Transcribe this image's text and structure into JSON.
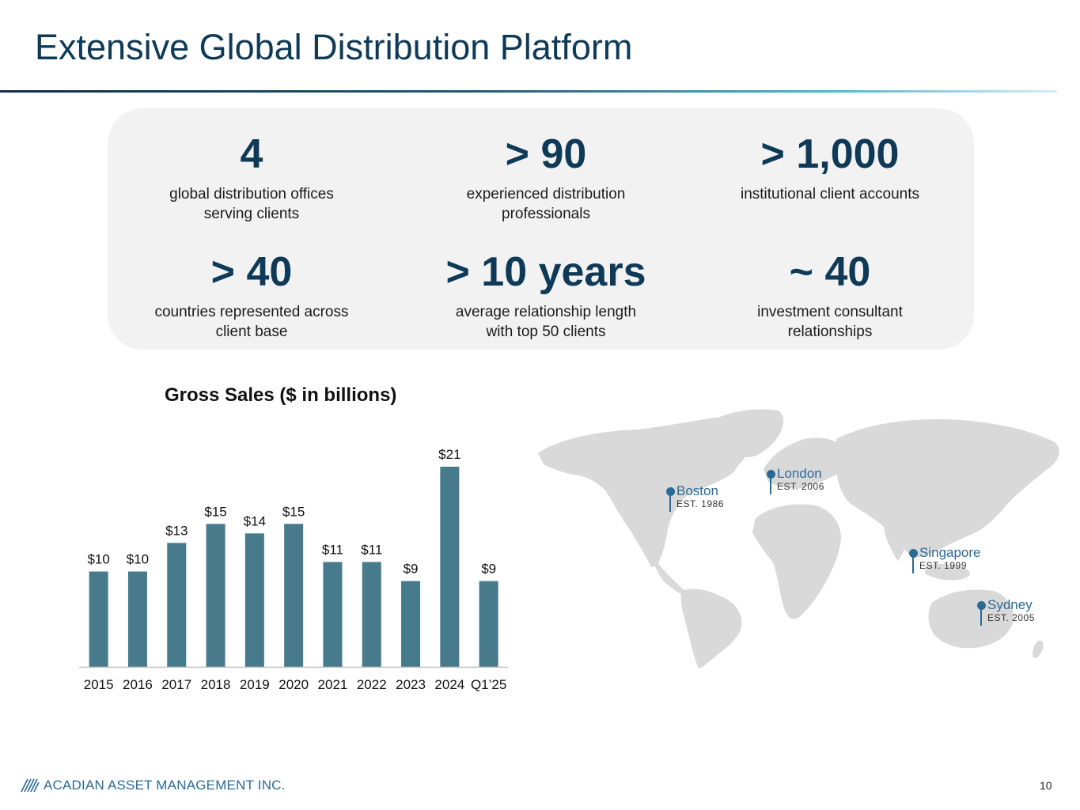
{
  "header": {
    "title": "Extensive Global Distribution Platform"
  },
  "stats": [
    {
      "value": "4",
      "description": "global distribution offices serving clients"
    },
    {
      "value": "> 90",
      "description": "experienced distribution professionals"
    },
    {
      "value": "> 1,000",
      "description": "institutional client accounts"
    },
    {
      "value": "> 40",
      "description": "countries represented across client base"
    },
    {
      "value": "> 10 years",
      "description": "average relationship length with top 50 clients"
    },
    {
      "value": "~ 40",
      "description": "investment consultant relationships"
    }
  ],
  "chart_data": {
    "type": "bar",
    "title": "Gross Sales ($ in billions)",
    "categories": [
      "2015",
      "2016",
      "2017",
      "2018",
      "2019",
      "2020",
      "2021",
      "2022",
      "2023",
      "2024",
      "Q1’25"
    ],
    "values": [
      10,
      10,
      13,
      15,
      14,
      15,
      11,
      11,
      9,
      21,
      9
    ],
    "data_labels": [
      "$10",
      "$10",
      "$13",
      "$15",
      "$14",
      "$15",
      "$11",
      "$11",
      "$9",
      "$21",
      "$9"
    ],
    "xlabel": "",
    "ylabel": "",
    "ylim": [
      0,
      21
    ],
    "grid": false,
    "legend": "none",
    "bar_color": "#477a8b"
  },
  "map": {
    "offices": [
      {
        "city": "Boston",
        "established": "EST. 1986"
      },
      {
        "city": "London",
        "established": "EST. 2006"
      },
      {
        "city": "Singapore",
        "established": "EST. 1999"
      },
      {
        "city": "Sydney",
        "established": "EST. 2005"
      }
    ],
    "pin_color": "#2b6a94",
    "land_color": "#d9d9d9"
  },
  "footer": {
    "company": "ACADIAN ASSET MANAGEMENT INC.",
    "page_number": "10"
  }
}
